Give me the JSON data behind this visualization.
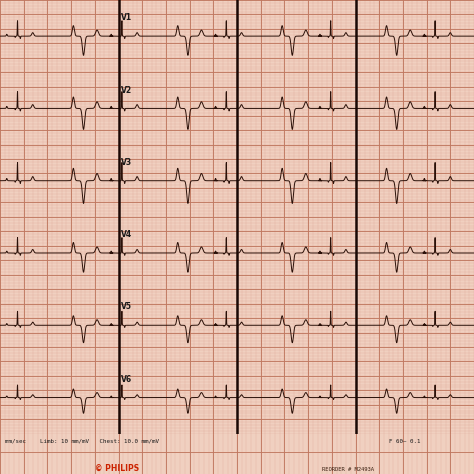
{
  "bg_color": "#f0d0c0",
  "grid_minor_color": "#e0a898",
  "grid_major_color": "#c07860",
  "ecg_color": "#2a1008",
  "label_color": "#1a1a1a",
  "figure_bg": "#e8c8b8",
  "leads": [
    "V1",
    "V2",
    "V3",
    "V4",
    "V5",
    "V6"
  ],
  "bottom_text_left": "mm/sec    Limb: 10 mm/mV   Chest: 10.0 mm/mV",
  "bottom_text_right": "F 60~ 0.1",
  "philips_text": "PHILIPS",
  "reorder_text": "REORDER # M2493A",
  "n_rows": 6,
  "figsize": [
    4.74,
    4.74
  ],
  "dpi": 100
}
